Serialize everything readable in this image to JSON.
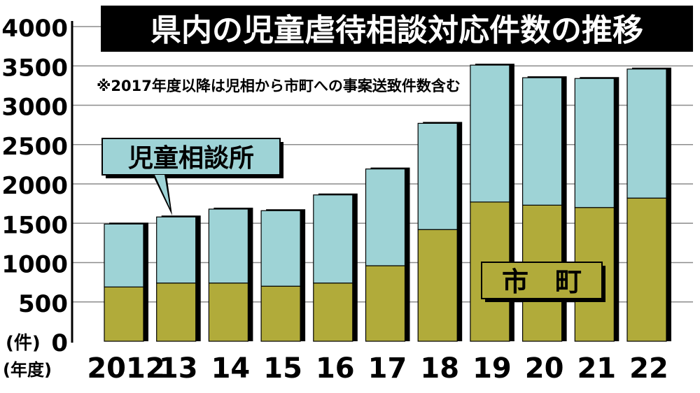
{
  "chart_data": {
    "type": "bar",
    "stacked": true,
    "title": "県内の児童虐待相談対応件数の推移",
    "note": "※2017年度以降は児相から市町への事案送致件数含む",
    "ylabel": "(件)",
    "xlabel": "(年度)",
    "ylim": [
      0,
      4000
    ],
    "yticks": [
      0,
      500,
      1000,
      1500,
      2000,
      2500,
      3000,
      3500,
      4000
    ],
    "grid": true,
    "categories": [
      "2012",
      "13",
      "14",
      "15",
      "16",
      "17",
      "18",
      "19",
      "20",
      "21",
      "22"
    ],
    "series": [
      {
        "name": "市　町",
        "color": "#b1ab3a",
        "values": [
          690,
          740,
          740,
          700,
          740,
          960,
          1420,
          1770,
          1730,
          1700,
          1820
        ]
      },
      {
        "name": "児童相談所",
        "color": "#9ed3d6",
        "values": [
          800,
          840,
          940,
          960,
          1120,
          1230,
          1350,
          1740,
          1620,
          1640,
          1640
        ]
      }
    ]
  }
}
